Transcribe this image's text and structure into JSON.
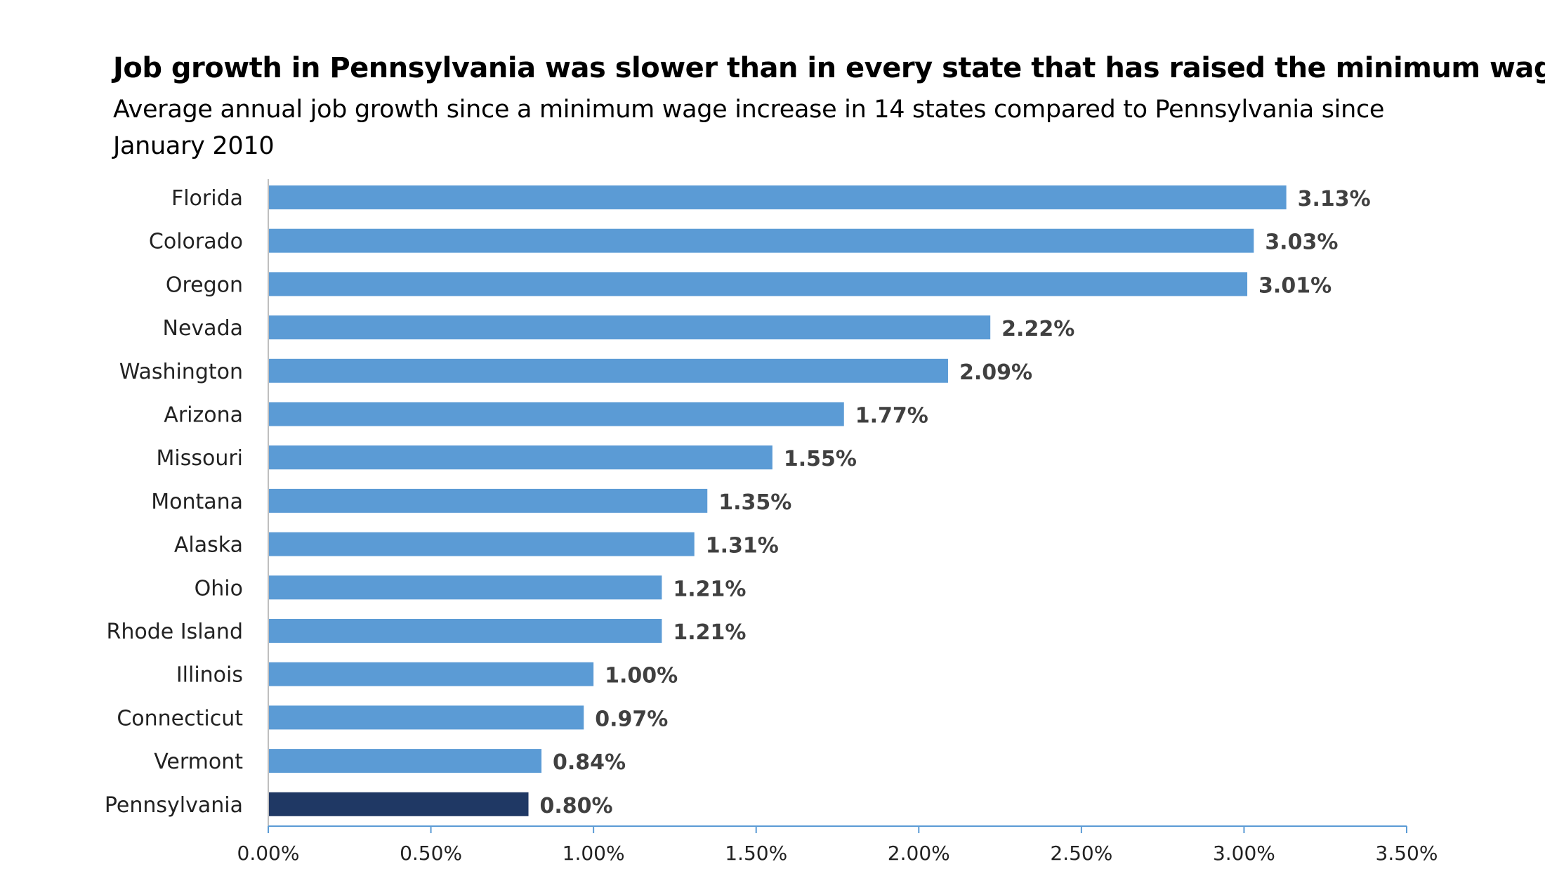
{
  "chart_data": {
    "type": "bar",
    "orientation": "horizontal",
    "title": "Job growth in Pennsylvania was slower than in every state that has raised the minimum wage",
    "subtitle": "Average annual job growth since a minimum wage increase in 14 states compared to Pennsylvania since January 2010",
    "categories": [
      "Florida",
      "Colorado",
      "Oregon",
      "Nevada",
      "Washington",
      "Arizona",
      "Missouri",
      "Montana",
      "Alaska",
      "Ohio",
      "Rhode Island",
      "Illinois",
      "Connecticut",
      "Vermont",
      "Pennsylvania"
    ],
    "values": [
      3.13,
      3.03,
      3.01,
      2.22,
      2.09,
      1.77,
      1.55,
      1.35,
      1.31,
      1.21,
      1.21,
      1.0,
      0.97,
      0.84,
      0.8
    ],
    "value_labels": [
      "3.13%",
      "3.03%",
      "3.01%",
      "2.22%",
      "2.09%",
      "1.77%",
      "1.55%",
      "1.35%",
      "1.31%",
      "1.21%",
      "1.21%",
      "1.00%",
      "0.97%",
      "0.84%",
      "0.80%"
    ],
    "xlim": [
      0,
      3.5
    ],
    "x_ticks": [
      "0.00%",
      "0.50%",
      "1.00%",
      "1.50%",
      "2.00%",
      "2.50%",
      "3.00%",
      "3.50%"
    ],
    "xlabel": "",
    "ylabel": "",
    "grid": false,
    "colors": {
      "bar": "#5b9bd5",
      "highlight_bar": "#1f3864",
      "axis": "#5b9bd5"
    },
    "highlight_category": "Pennsylvania"
  }
}
